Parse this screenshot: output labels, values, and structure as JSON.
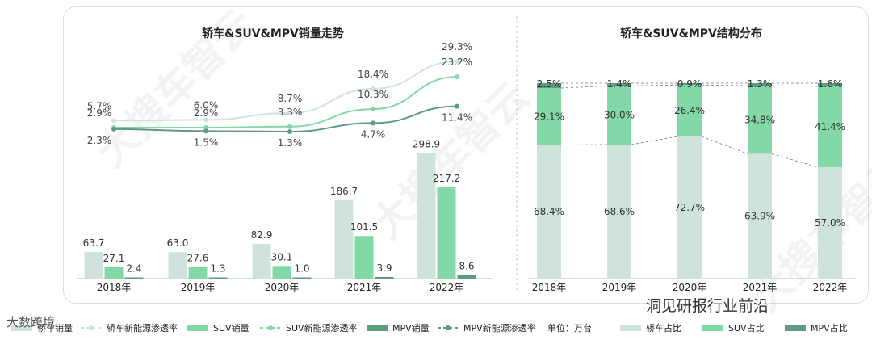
{
  "chart_data": [
    {
      "type": "bar",
      "title": "轿车&SUV&MPV销量走势",
      "categories": [
        "2018年",
        "2019年",
        "2020年",
        "2021年",
        "2022年"
      ],
      "series": [
        {
          "name": "轿车销量",
          "values": [
            63.7,
            63.0,
            82.9,
            186.7,
            298.9
          ],
          "color": "#cfe3db"
        },
        {
          "name": "SUV销量",
          "values": [
            27.1,
            27.6,
            30.1,
            101.5,
            217.2
          ],
          "color": "#82d8a6"
        },
        {
          "name": "MPV销量",
          "values": [
            2.4,
            1.3,
            1.0,
            3.9,
            8.6
          ],
          "color": "#5e9c82"
        }
      ],
      "line_series": [
        {
          "name": "轿车新能源渗透率",
          "values": [
            5.7,
            6.0,
            8.7,
            18.4,
            29.3
          ],
          "labels": [
            "5.7%",
            "6.0%",
            "8.7%",
            "18.4%",
            "29.3%"
          ],
          "color": "#cfe3db"
        },
        {
          "name": "SUV新能源渗透率",
          "values": [
            2.9,
            2.9,
            3.3,
            10.3,
            23.2
          ],
          "labels": [
            "2.9%",
            "2.9%",
            "3.3%",
            "10.3%",
            "23.2%"
          ],
          "color": "#82d8a6"
        },
        {
          "name": "MPV新能源渗透率",
          "values": [
            2.3,
            1.5,
            1.3,
            4.7,
            11.4
          ],
          "labels": [
            "2.3%",
            "1.5%",
            "1.3%",
            "4.7%",
            "11.4%"
          ],
          "color": "#5e9c82"
        }
      ],
      "unit": "单位：万台"
    },
    {
      "type": "bar",
      "stacked": true,
      "title": "轿车&SUV&MPV结构分布",
      "categories": [
        "2018年",
        "2019年",
        "2020年",
        "2021年",
        "2022年"
      ],
      "series": [
        {
          "name": "轿车占比",
          "values": [
            68.4,
            68.6,
            72.7,
            63.9,
            57.0
          ],
          "labels": [
            "68.4%",
            "68.6%",
            "72.7%",
            "63.9%",
            "57.0%"
          ],
          "color": "#cfe3db"
        },
        {
          "name": "SUV占比",
          "values": [
            29.1,
            30.0,
            26.4,
            34.8,
            41.4
          ],
          "labels": [
            "29.1%",
            "30.0%",
            "26.4%",
            "34.8%",
            "41.4%"
          ],
          "color": "#82d8a6"
        },
        {
          "name": "MPV占比",
          "values": [
            2.5,
            1.4,
            0.9,
            1.3,
            1.6
          ],
          "labels": [
            "2.5%",
            "1.4%",
            "0.9%",
            "1.3%",
            "1.6%"
          ],
          "color": "#5e9c82"
        }
      ]
    }
  ],
  "watermark": "大搜车智云",
  "footer": {
    "left": "大数跨境",
    "right": "洞见研报行业前沿"
  }
}
